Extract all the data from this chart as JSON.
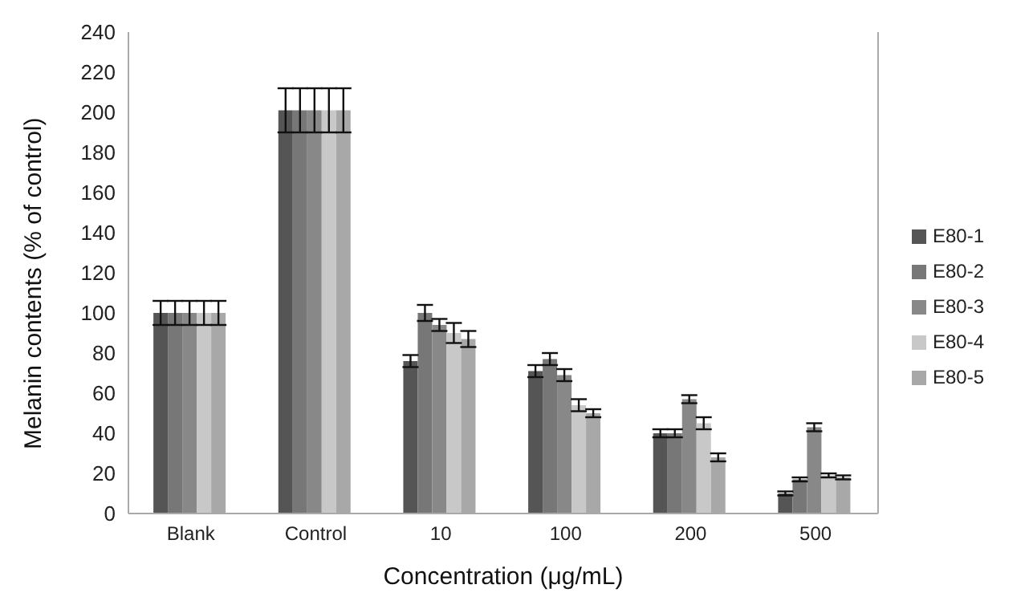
{
  "chart_data": {
    "type": "bar",
    "xlabel": "Concentration (μg/mL)",
    "ylabel": "Melanin contents (% of control)",
    "categories": [
      "Blank",
      "Control",
      "10",
      "100",
      "200",
      "500"
    ],
    "ylim": [
      0,
      240
    ],
    "yticks": [
      0,
      20,
      40,
      60,
      80,
      100,
      120,
      140,
      160,
      180,
      200,
      220,
      240
    ],
    "grid": false,
    "legend": "right",
    "series": [
      {
        "name": "E80-1",
        "color": "#555555",
        "values": [
          100,
          201,
          76,
          71,
          40,
          10
        ],
        "errors": [
          6,
          11,
          3,
          3,
          2,
          1
        ]
      },
      {
        "name": "E80-2",
        "color": "#777777",
        "values": [
          100,
          201,
          100,
          77,
          40,
          17
        ],
        "errors": [
          6,
          11,
          4,
          3,
          2,
          1
        ]
      },
      {
        "name": "E80-3",
        "color": "#888888",
        "values": [
          100,
          201,
          94,
          69,
          57,
          43
        ],
        "errors": [
          6,
          11,
          3,
          3,
          2,
          2
        ]
      },
      {
        "name": "E80-4",
        "color": "#c8c8c8",
        "values": [
          100,
          201,
          90,
          54,
          45,
          19
        ],
        "errors": [
          6,
          11,
          5,
          3,
          3,
          1
        ]
      },
      {
        "name": "E80-5",
        "color": "#a8a8a8",
        "values": [
          100,
          201,
          87,
          50,
          28,
          18
        ],
        "errors": [
          6,
          11,
          4,
          2,
          2,
          1
        ]
      }
    ]
  }
}
